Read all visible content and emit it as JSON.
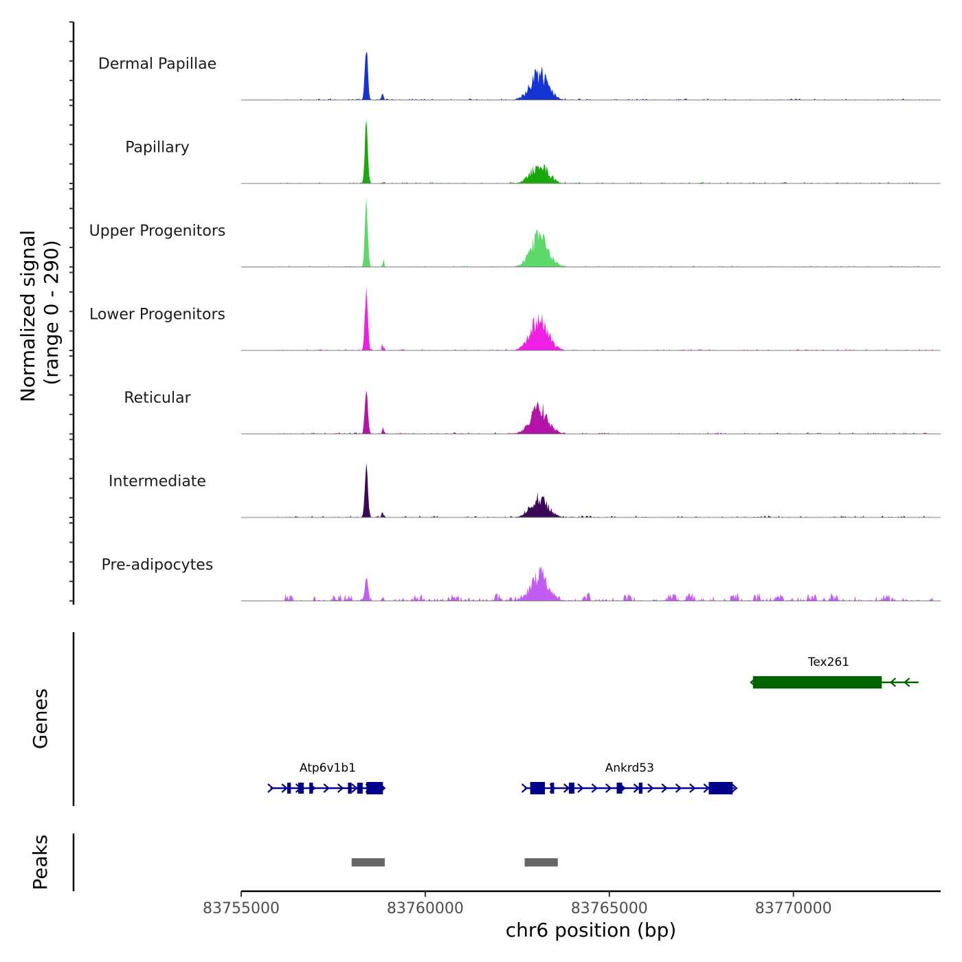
{
  "chart_data": {
    "type": "area",
    "chromosome": "chr6",
    "x_axis": {
      "title": "chr6 position (bp)",
      "range": [
        83755000,
        83774000
      ],
      "ticks": [
        83755000,
        83760000,
        83765000,
        83770000
      ],
      "tick_labels": [
        "83755000",
        "83760000",
        "83765000",
        "83770000"
      ]
    },
    "signal_axis": {
      "title_line1": "Normalized signal",
      "title_line2": "(range 0 - 290)",
      "range": [
        0,
        290
      ]
    },
    "tracks": [
      {
        "name": "Dermal Papillae",
        "color": "#1434d6",
        "peak1": 250,
        "peak2": 150,
        "noise": 8,
        "seed": 11
      },
      {
        "name": "Papillary",
        "color": "#1aa80d",
        "peak1": 290,
        "peak2": 103,
        "noise": 8,
        "seed": 23
      },
      {
        "name": "Upper Progenitors",
        "color": "#5cd96a",
        "peak1": 290,
        "peak2": 165,
        "noise": 7,
        "seed": 37
      },
      {
        "name": "Lower Progenitors",
        "color": "#f01fe4",
        "peak1": 280,
        "peak2": 175,
        "noise": 7,
        "seed": 41
      },
      {
        "name": "Reticular",
        "color": "#b313a8",
        "peak1": 225,
        "peak2": 140,
        "noise": 8,
        "seed": 53
      },
      {
        "name": "Intermediate",
        "color": "#3a0a59",
        "peak1": 235,
        "peak2": 110,
        "noise": 9,
        "seed": 67
      },
      {
        "name": "Pre-adipocytes",
        "color": "#c25cf2",
        "peak1": 116,
        "peak2": 150,
        "noise": 22,
        "seed": 79
      }
    ],
    "genes_track": {
      "title": "Genes",
      "genes": [
        {
          "name": "Tex261",
          "start": 83768900,
          "end": 83773400,
          "strand": "-",
          "color": "#006400",
          "exons": [
            [
              83768900,
              83772400
            ]
          ]
        },
        {
          "name": "Atp6v1b1",
          "start": 83755800,
          "end": 83758900,
          "strand": "+",
          "color": "#00008b",
          "exons": [
            [
              83756250,
              83756350
            ],
            [
              83756550,
              83756700
            ],
            [
              83756850,
              83756950
            ],
            [
              83757900,
              83758000
            ],
            [
              83758150,
              83758300
            ],
            [
              83758400,
              83758850
            ]
          ]
        },
        {
          "name": "Ankrd53",
          "start": 83762700,
          "end": 83768400,
          "strand": "+",
          "color": "#00008b",
          "exons": [
            [
              83762850,
              83763250
            ],
            [
              83763400,
              83763500
            ],
            [
              83763900,
              83764050
            ],
            [
              83765200,
              83765350
            ],
            [
              83765800,
              83765900
            ],
            [
              83767700,
              83768350
            ]
          ]
        }
      ]
    },
    "peaks_track": {
      "title": "Peaks",
      "color": "#666666",
      "peaks": [
        [
          83758000,
          83758900
        ],
        [
          83762700,
          83763600
        ]
      ]
    }
  }
}
